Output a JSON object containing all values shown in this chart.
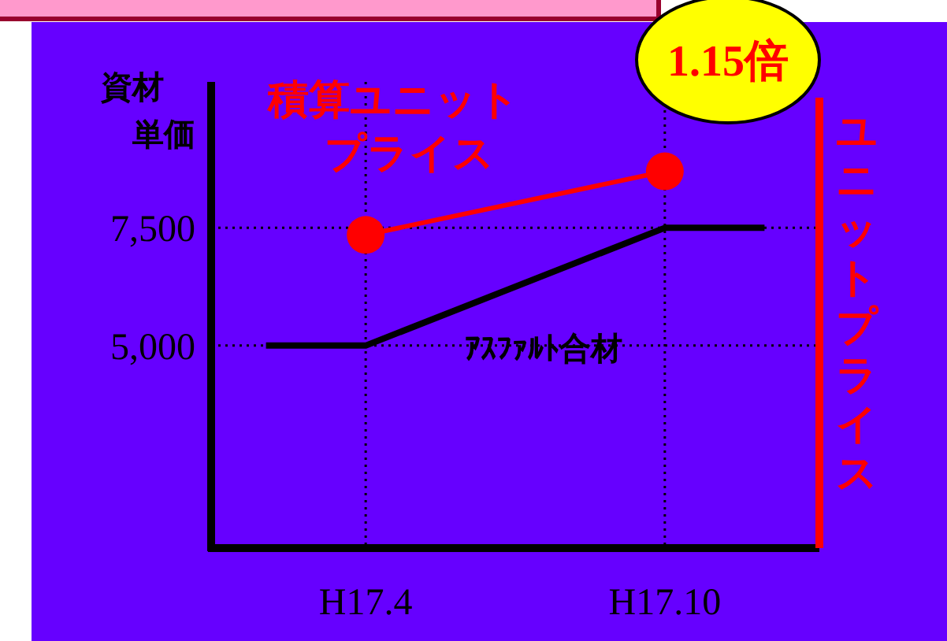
{
  "chart_data": {
    "type": "line",
    "ylabel": "資材単価",
    "y2label": "ユニットプライス",
    "categories": [
      null,
      "H17.4",
      null,
      null,
      "H17.10",
      null
    ],
    "ylim": [
      700,
      10600
    ],
    "yticks": [
      {
        "value": 5000,
        "label": "5,000"
      },
      {
        "value": 7500,
        "label": "7,500"
      }
    ],
    "series": [
      {
        "name": "積算ユニットプライス",
        "color": "#ff0000",
        "values": [
          null,
          7350,
          null,
          null,
          8700,
          null
        ],
        "marker": "circle"
      },
      {
        "name": "ｱｽﾌｧﾙﾄ合材",
        "color": "#000000",
        "values": [
          5000,
          5000,
          null,
          null,
          7500,
          7500
        ],
        "marker": "none"
      }
    ],
    "ref_lines": [
      {
        "axis": "y",
        "value": 7500,
        "line_style": "dotted",
        "color": "#000000"
      },
      {
        "axis": "y",
        "value": 5000,
        "line_style": "dotted",
        "color": "#000000"
      },
      {
        "axis": "x",
        "value": "H17.4",
        "line_style": "dotted",
        "color": "#000000"
      },
      {
        "axis": "x",
        "value": "H17.10",
        "line_style": "dotted",
        "color": "#000000"
      }
    ],
    "annotations": [
      "1.15倍"
    ]
  }
}
